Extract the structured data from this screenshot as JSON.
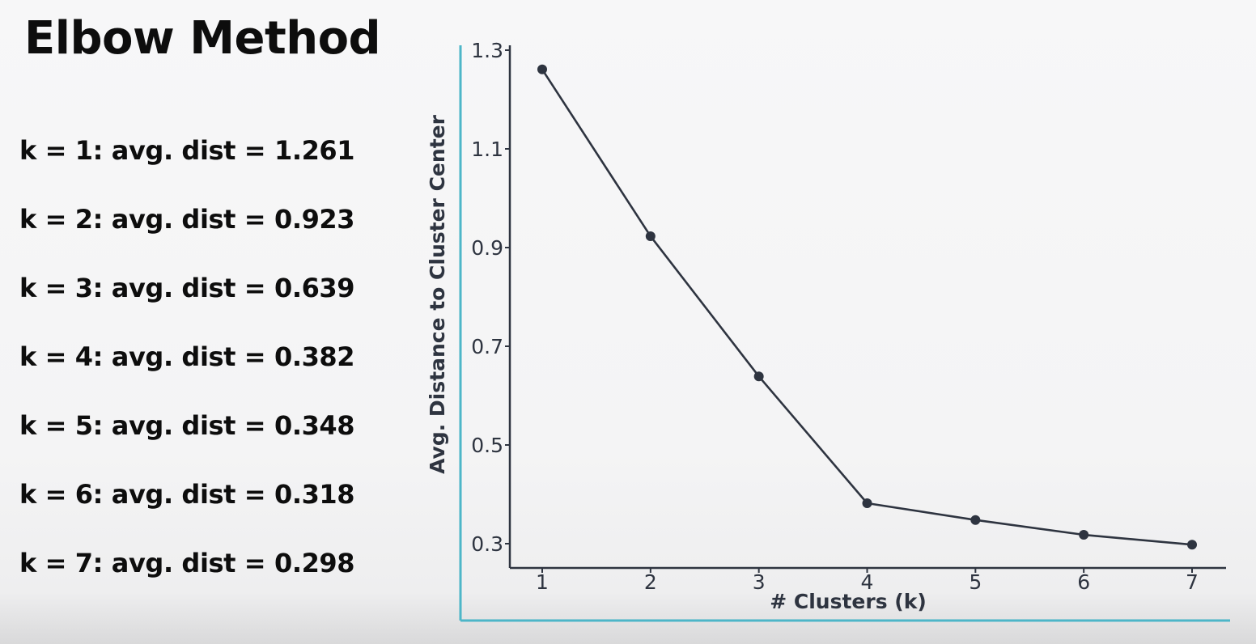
{
  "title": "Elbow Method",
  "k_results": [
    "k = 1: avg. dist = 1.261",
    "k = 2: avg. dist = 0.923",
    "k = 3: avg. dist = 0.639",
    "k = 4: avg. dist = 0.382",
    "k = 5: avg. dist = 0.348",
    "k = 6: avg. dist = 0.318",
    "k = 7: avg. dist = 0.298"
  ],
  "colors": {
    "frame": "#4db6c8",
    "line": "#2e3440",
    "axis": "#2e3440",
    "text": "#2e3440"
  },
  "chart_data": {
    "type": "line",
    "x": [
      1,
      2,
      3,
      4,
      5,
      6,
      7
    ],
    "y": [
      1.261,
      0.923,
      0.639,
      0.382,
      0.348,
      0.318,
      0.298
    ],
    "xlabel": "# Clusters (k)",
    "ylabel": "Avg. Distance to Cluster Center",
    "xticks": [
      "1",
      "2",
      "3",
      "4",
      "5",
      "6",
      "7"
    ],
    "yticks": [
      "0.3",
      "0.5",
      "0.7",
      "0.9",
      "1.1",
      "1.3"
    ],
    "xlim": [
      0.7,
      7.3
    ],
    "ylim": [
      0.25,
      1.3
    ],
    "grid": false,
    "legend": "none"
  }
}
